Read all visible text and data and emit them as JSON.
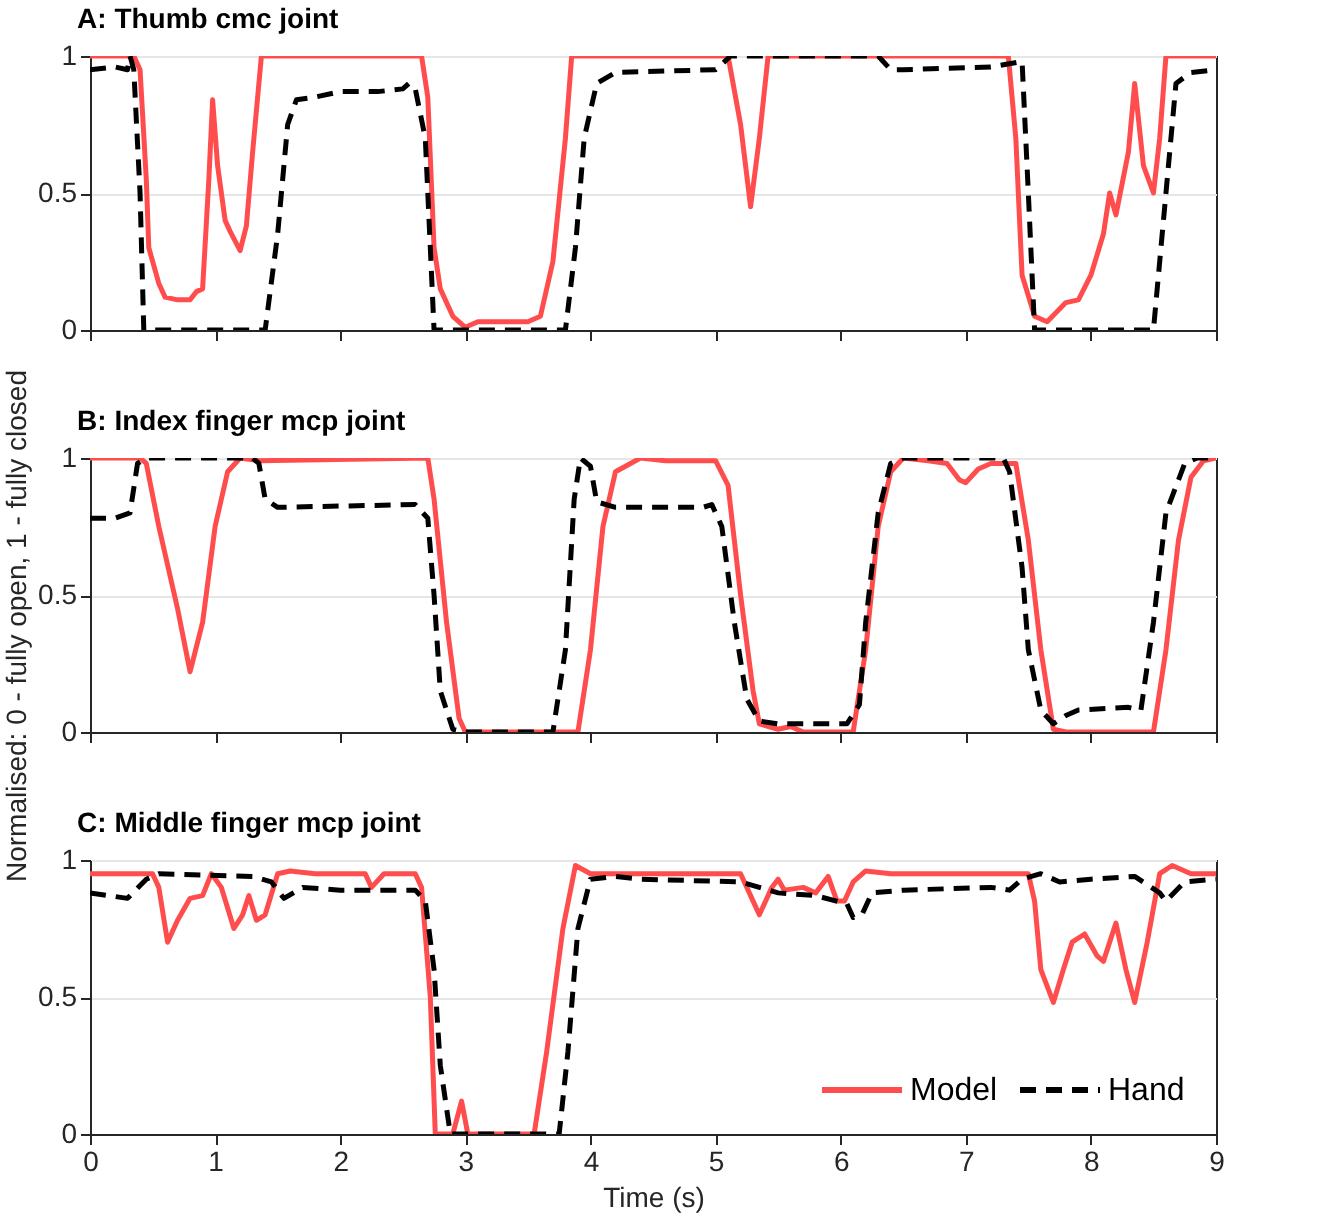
{
  "chart_data": [
    {
      "type": "line",
      "title": "A: Thumb cmc joint",
      "xlim": [
        0,
        9
      ],
      "xticks": [
        0,
        1,
        2,
        3,
        4,
        5,
        6,
        7,
        8,
        9
      ],
      "ylim": [
        0,
        1
      ],
      "yticks": [
        0,
        0.5,
        1
      ],
      "grid": "y",
      "tick_labels": "y",
      "legend": false,
      "series": [
        {
          "color": "#ff4d4d",
          "line_style": "solid",
          "x": [
            0,
            0.35,
            0.4,
            0.45,
            0.47,
            0.55,
            0.6,
            0.7,
            0.8,
            0.85,
            0.9,
            0.95,
            0.98,
            1.02,
            1.08,
            1.12,
            1.2,
            1.25,
            1.3,
            1.37,
            2.65,
            2.7,
            2.75,
            2.8,
            2.9,
            3.0,
            3.1,
            3.5,
            3.6,
            3.7,
            3.8,
            3.85,
            5.1,
            5.2,
            5.28,
            5.35,
            5.42,
            7.34,
            7.4,
            7.45,
            7.55,
            7.65,
            7.8,
            7.9,
            8.0,
            8.1,
            8.15,
            8.2,
            8.3,
            8.35,
            8.42,
            8.5,
            8.55,
            8.6,
            9
          ],
          "values": [
            1,
            1,
            0.95,
            0.55,
            0.3,
            0.17,
            0.12,
            0.11,
            0.11,
            0.14,
            0.15,
            0.55,
            0.84,
            0.6,
            0.4,
            0.36,
            0.29,
            0.38,
            0.65,
            1,
            1,
            0.85,
            0.3,
            0.15,
            0.05,
            0.01,
            0.03,
            0.03,
            0.05,
            0.25,
            0.7,
            1,
            1,
            0.75,
            0.45,
            0.7,
            1,
            1,
            0.7,
            0.2,
            0.05,
            0.03,
            0.1,
            0.11,
            0.2,
            0.35,
            0.5,
            0.42,
            0.65,
            0.9,
            0.6,
            0.5,
            0.7,
            1,
            1
          ]
        },
        {
          "color": "#000000",
          "line_style": "dashed",
          "x": [
            0,
            0.2,
            0.3,
            0.32,
            0.35,
            0.4,
            0.43,
            1.4,
            1.5,
            1.58,
            1.65,
            1.8,
            2.0,
            2.3,
            2.5,
            2.55,
            2.6,
            2.68,
            2.73,
            2.75,
            3.8,
            3.88,
            3.95,
            4.05,
            4.2,
            5.0,
            5.05,
            5.12,
            6.3,
            6.4,
            6.5,
            7.2,
            7.45,
            7.5,
            7.55,
            8.5,
            8.6,
            8.68,
            8.8,
            9
          ],
          "values": [
            0.95,
            0.96,
            0.95,
            1,
            0.95,
            0.5,
            0,
            0,
            0.35,
            0.75,
            0.84,
            0.85,
            0.87,
            0.87,
            0.88,
            0.9,
            0.88,
            0.7,
            0.2,
            0,
            0,
            0.3,
            0.7,
            0.9,
            0.94,
            0.95,
            0.97,
            1,
            1,
            0.95,
            0.95,
            0.96,
            0.98,
            0.5,
            0,
            0,
            0.5,
            0.9,
            0.94,
            0.95
          ]
        }
      ]
    },
    {
      "type": "line",
      "title": "B: Index finger mcp joint",
      "ylabel": "Normalised: 0 - fully open, 1 - fully closed",
      "xlim": [
        0,
        9
      ],
      "xticks": [
        0,
        1,
        2,
        3,
        4,
        5,
        6,
        7,
        8,
        9
      ],
      "ylim": [
        0,
        1
      ],
      "yticks": [
        0,
        0.5,
        1
      ],
      "grid": "y",
      "tick_labels": "y",
      "legend": false,
      "series": [
        {
          "color": "#ff4d4d",
          "line_style": "solid",
          "x": [
            0,
            0.4,
            0.45,
            0.55,
            0.7,
            0.8,
            0.9,
            1.0,
            1.1,
            1.2,
            1.35,
            2.7,
            2.75,
            2.85,
            2.95,
            3.0,
            3.9,
            4.0,
            4.1,
            4.2,
            4.4,
            4.6,
            5.0,
            5.1,
            5.2,
            5.3,
            5.35,
            5.5,
            5.6,
            5.7,
            6.1,
            6.2,
            6.3,
            6.4,
            6.5,
            6.7,
            6.85,
            6.95,
            7.0,
            7.1,
            7.2,
            7.4,
            7.5,
            7.6,
            7.7,
            7.8,
            8.5,
            8.6,
            8.7,
            8.8,
            8.9,
            9
          ],
          "values": [
            1,
            1,
            0.98,
            0.75,
            0.45,
            0.22,
            0.4,
            0.75,
            0.95,
            1,
            0.99,
            1,
            0.85,
            0.4,
            0.05,
            0,
            0,
            0.3,
            0.75,
            0.95,
            1,
            0.99,
            0.99,
            0.9,
            0.5,
            0.15,
            0.03,
            0.01,
            0.02,
            0,
            0,
            0.3,
            0.75,
            0.95,
            1,
            0.99,
            0.98,
            0.92,
            0.91,
            0.96,
            0.98,
            0.98,
            0.7,
            0.3,
            0.01,
            0,
            0,
            0.3,
            0.7,
            0.93,
            0.99,
            1
          ]
        },
        {
          "color": "#000000",
          "line_style": "dashed",
          "x": [
            0,
            0.2,
            0.32,
            0.38,
            0.45,
            1.3,
            1.35,
            1.4,
            1.5,
            2.6,
            2.7,
            2.75,
            2.8,
            2.9,
            3.0,
            3.7,
            3.8,
            3.87,
            3.92,
            4.0,
            4.05,
            4.2,
            4.9,
            4.97,
            5.05,
            5.15,
            5.25,
            5.35,
            5.5,
            6.05,
            6.15,
            6.2,
            6.3,
            6.4,
            6.5,
            7.3,
            7.35,
            7.45,
            7.5,
            7.6,
            7.7,
            7.8,
            7.9,
            8.3,
            8.4,
            8.5,
            8.6,
            8.75,
            8.85,
            9
          ],
          "values": [
            0.78,
            0.78,
            0.8,
            0.98,
            1,
            1,
            0.98,
            0.85,
            0.82,
            0.83,
            0.78,
            0.5,
            0.15,
            0.01,
            0,
            0,
            0.3,
            0.85,
            1,
            0.97,
            0.84,
            0.82,
            0.82,
            0.83,
            0.75,
            0.4,
            0.12,
            0.04,
            0.03,
            0.03,
            0.1,
            0.4,
            0.8,
            0.98,
            1,
            1,
            0.95,
            0.6,
            0.3,
            0.08,
            0.03,
            0.06,
            0.08,
            0.09,
            0.08,
            0.4,
            0.8,
            0.98,
            1,
            1
          ]
        }
      ]
    },
    {
      "type": "line",
      "title": "C: Middle finger mcp joint",
      "xlabel": "Time (s)",
      "xlim": [
        0,
        9
      ],
      "xticks": [
        0,
        1,
        2,
        3,
        4,
        5,
        6,
        7,
        8,
        9
      ],
      "ylim": [
        0,
        1
      ],
      "yticks": [
        0,
        0.5,
        1
      ],
      "grid": "y",
      "legend": "bottom right",
      "series": [
        {
          "name": "Model",
          "color": "#ff4d4d",
          "line_style": "solid",
          "x": [
            0,
            0.5,
            0.55,
            0.62,
            0.7,
            0.8,
            0.9,
            0.97,
            1.05,
            1.15,
            1.22,
            1.27,
            1.33,
            1.4,
            1.5,
            1.6,
            1.8,
            2.2,
            2.25,
            2.35,
            2.6,
            2.65,
            2.72,
            2.76,
            2.9,
            2.97,
            3.02,
            3.55,
            3.65,
            3.78,
            3.88,
            4.0,
            5.2,
            5.3,
            5.35,
            5.45,
            5.5,
            5.55,
            5.7,
            5.8,
            5.9,
            5.97,
            6.03,
            6.1,
            6.2,
            6.4,
            7.5,
            7.55,
            7.6,
            7.7,
            7.78,
            7.85,
            7.95,
            8.05,
            8.1,
            8.2,
            8.28,
            8.35,
            8.45,
            8.55,
            8.65,
            8.8,
            9
          ],
          "values": [
            0.95,
            0.95,
            0.9,
            0.7,
            0.78,
            0.86,
            0.87,
            0.95,
            0.9,
            0.75,
            0.8,
            0.87,
            0.78,
            0.8,
            0.95,
            0.96,
            0.95,
            0.95,
            0.9,
            0.95,
            0.95,
            0.9,
            0.5,
            0,
            0,
            0.12,
            0,
            0,
            0.3,
            0.75,
            0.98,
            0.95,
            0.95,
            0.85,
            0.8,
            0.9,
            0.93,
            0.89,
            0.9,
            0.88,
            0.94,
            0.85,
            0.85,
            0.92,
            0.96,
            0.95,
            0.95,
            0.85,
            0.6,
            0.48,
            0.6,
            0.7,
            0.73,
            0.65,
            0.63,
            0.77,
            0.6,
            0.48,
            0.7,
            0.95,
            0.98,
            0.95,
            0.95
          ]
        },
        {
          "name": "Hand",
          "color": "#000000",
          "line_style": "dashed",
          "x": [
            0,
            0.3,
            0.45,
            0.55,
            1.3,
            1.45,
            1.55,
            1.7,
            2.0,
            2.6,
            2.68,
            2.75,
            2.8,
            2.88,
            3.75,
            3.82,
            3.9,
            4.0,
            4.2,
            4.4,
            5.2,
            5.35,
            5.5,
            5.8,
            6.05,
            6.1,
            6.17,
            6.25,
            6.5,
            7.2,
            7.35,
            7.45,
            7.6,
            7.75,
            8.0,
            8.35,
            8.45,
            8.55,
            8.6,
            8.75,
            9
          ],
          "values": [
            0.88,
            0.86,
            0.93,
            0.95,
            0.94,
            0.92,
            0.86,
            0.9,
            0.89,
            0.89,
            0.85,
            0.6,
            0.25,
            0,
            0,
            0.3,
            0.75,
            0.93,
            0.94,
            0.93,
            0.92,
            0.9,
            0.88,
            0.87,
            0.84,
            0.79,
            0.8,
            0.88,
            0.89,
            0.9,
            0.89,
            0.93,
            0.95,
            0.92,
            0.93,
            0.94,
            0.91,
            0.88,
            0.85,
            0.92,
            0.93
          ]
        }
      ]
    }
  ]
}
